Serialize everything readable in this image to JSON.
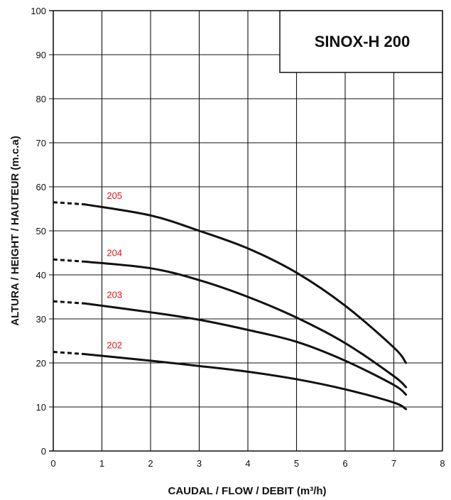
{
  "chart_data": {
    "type": "line",
    "title": "SINOX-H 200",
    "xlabel": "CAUDAL / FLOW / DEBIT (m³/h)",
    "ylabel": "ALTURA / HEIGHT / HAUTEUR (m.c.a)",
    "xlim": [
      0,
      8
    ],
    "ylim": [
      0,
      100
    ],
    "x_ticks": [
      "0",
      "1",
      "2",
      "3",
      "4",
      "5",
      "6",
      "7",
      "8"
    ],
    "y_ticks": [
      "0",
      "10",
      "20",
      "30",
      "40",
      "50",
      "60",
      "70",
      "80",
      "90",
      "100"
    ],
    "grid": true,
    "dashed_until_x": 0.65,
    "series": [
      {
        "name": "205",
        "x": [
          0,
          0.65,
          2,
          3,
          4,
          5,
          6,
          7,
          7.25
        ],
        "y": [
          56.5,
          56,
          53.5,
          50,
          46,
          40.5,
          33,
          23.5,
          20
        ]
      },
      {
        "name": "204",
        "x": [
          0,
          0.65,
          2,
          3,
          4,
          5,
          6,
          7,
          7.25
        ],
        "y": [
          43.5,
          43,
          41.5,
          38.8,
          35,
          30.3,
          24.5,
          17,
          14.5
        ]
      },
      {
        "name": "203",
        "x": [
          0,
          0.65,
          2,
          3,
          4,
          5,
          6,
          7,
          7.25
        ],
        "y": [
          34,
          33.5,
          31.5,
          29.8,
          27.5,
          24.8,
          20.5,
          15,
          12.8
        ]
      },
      {
        "name": "202",
        "x": [
          0,
          0.65,
          2,
          3,
          4,
          5,
          6,
          7,
          7.25
        ],
        "y": [
          22.5,
          22,
          20.5,
          19.3,
          18,
          16.3,
          14,
          11,
          9.5
        ]
      }
    ]
  },
  "colors": {
    "curve": "#111111",
    "curve_label": "#d11b1b",
    "grid": "#111111"
  }
}
